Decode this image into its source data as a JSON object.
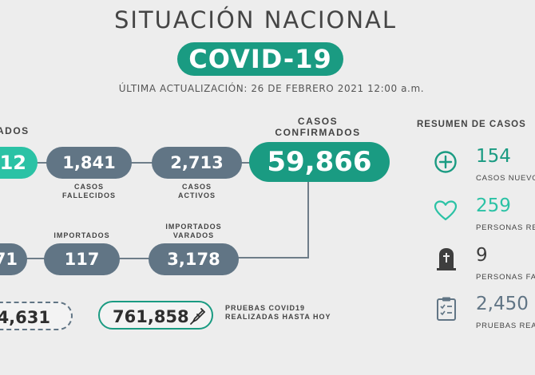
{
  "header": {
    "title": "SITUACIÓN NACIONAL",
    "badge": "COVID-19",
    "updated": "ÚLTIMA ACTUALIZACIÓN: 26 DE FEBRERO 2021 12:00 a.m."
  },
  "row1": {
    "partial_label": "ADOS",
    "partial_value": "12",
    "fallecidos": {
      "value": "1,841",
      "label_1": "CASOS",
      "label_2": "FALLECIDOS"
    },
    "activos": {
      "value": "2,713",
      "label_1": "CASOS",
      "label_2": "ACTIVOS"
    },
    "confirmados": {
      "value": "59,866",
      "label_1": "CASOS",
      "label_2": "CONFIRMADOS"
    }
  },
  "row2": {
    "partial_value": "71",
    "importados": {
      "value": "117",
      "label": "IMPORTADOS"
    },
    "importados_varados": {
      "value": "3,178",
      "label_1": "IMPORTADOS",
      "label_2": "VARADOS"
    }
  },
  "row3": {
    "partial_value": "4,631",
    "pruebas": {
      "value": "761,858",
      "label_1": "PRUEBAS COVID19",
      "label_2": "REALIZADAS HASTA HOY"
    }
  },
  "resumen": {
    "title": "RESUMEN DE CASOS",
    "items": [
      {
        "value": "154",
        "label": "CASOS NUEVOS",
        "icon": "plus-circle-icon",
        "color": "#1a9b82"
      },
      {
        "value": "259",
        "label": "PERSONAS REC",
        "icon": "heart-icon",
        "color": "#2bc2a5"
      },
      {
        "value": "9",
        "label": "PERSONAS FAL",
        "icon": "tombstone-icon",
        "color": "#3e3e3e"
      },
      {
        "value": "2,450",
        "label": "PRUEBAS REAL",
        "icon": "clipboard-icon",
        "color": "#617585"
      }
    ]
  },
  "colors": {
    "green": "#1a9b82",
    "teal": "#2bc2a5",
    "gray": "#617585"
  }
}
